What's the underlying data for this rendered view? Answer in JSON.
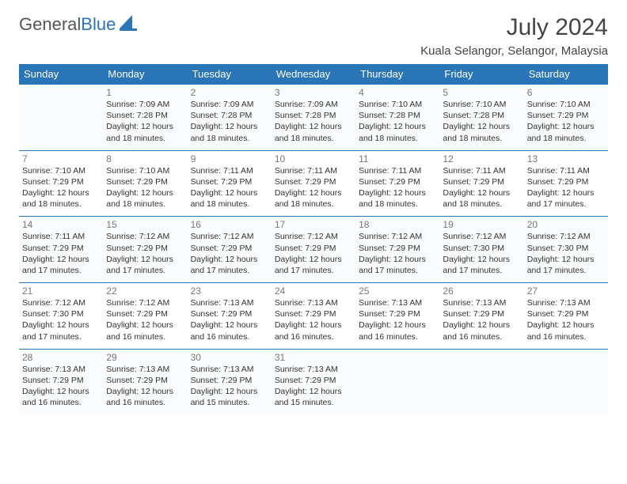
{
  "logo": {
    "word1": "General",
    "word2": "Blue"
  },
  "title": "July 2024",
  "location": "Kuala Selangor, Selangor, Malaysia",
  "colors": {
    "brand": "#2a74b8",
    "text": "#333333",
    "muted": "#777777",
    "bg_alt": "#fafbfc"
  },
  "day_headers": [
    "Sunday",
    "Monday",
    "Tuesday",
    "Wednesday",
    "Thursday",
    "Friday",
    "Saturday"
  ],
  "weeks": [
    [
      null,
      {
        "n": "1",
        "sr": "Sunrise: 7:09 AM",
        "ss": "Sunset: 7:28 PM",
        "d1": "Daylight: 12 hours",
        "d2": "and 18 minutes."
      },
      {
        "n": "2",
        "sr": "Sunrise: 7:09 AM",
        "ss": "Sunset: 7:28 PM",
        "d1": "Daylight: 12 hours",
        "d2": "and 18 minutes."
      },
      {
        "n": "3",
        "sr": "Sunrise: 7:09 AM",
        "ss": "Sunset: 7:28 PM",
        "d1": "Daylight: 12 hours",
        "d2": "and 18 minutes."
      },
      {
        "n": "4",
        "sr": "Sunrise: 7:10 AM",
        "ss": "Sunset: 7:28 PM",
        "d1": "Daylight: 12 hours",
        "d2": "and 18 minutes."
      },
      {
        "n": "5",
        "sr": "Sunrise: 7:10 AM",
        "ss": "Sunset: 7:28 PM",
        "d1": "Daylight: 12 hours",
        "d2": "and 18 minutes."
      },
      {
        "n": "6",
        "sr": "Sunrise: 7:10 AM",
        "ss": "Sunset: 7:29 PM",
        "d1": "Daylight: 12 hours",
        "d2": "and 18 minutes."
      }
    ],
    [
      {
        "n": "7",
        "sr": "Sunrise: 7:10 AM",
        "ss": "Sunset: 7:29 PM",
        "d1": "Daylight: 12 hours",
        "d2": "and 18 minutes."
      },
      {
        "n": "8",
        "sr": "Sunrise: 7:10 AM",
        "ss": "Sunset: 7:29 PM",
        "d1": "Daylight: 12 hours",
        "d2": "and 18 minutes."
      },
      {
        "n": "9",
        "sr": "Sunrise: 7:11 AM",
        "ss": "Sunset: 7:29 PM",
        "d1": "Daylight: 12 hours",
        "d2": "and 18 minutes."
      },
      {
        "n": "10",
        "sr": "Sunrise: 7:11 AM",
        "ss": "Sunset: 7:29 PM",
        "d1": "Daylight: 12 hours",
        "d2": "and 18 minutes."
      },
      {
        "n": "11",
        "sr": "Sunrise: 7:11 AM",
        "ss": "Sunset: 7:29 PM",
        "d1": "Daylight: 12 hours",
        "d2": "and 18 minutes."
      },
      {
        "n": "12",
        "sr": "Sunrise: 7:11 AM",
        "ss": "Sunset: 7:29 PM",
        "d1": "Daylight: 12 hours",
        "d2": "and 18 minutes."
      },
      {
        "n": "13",
        "sr": "Sunrise: 7:11 AM",
        "ss": "Sunset: 7:29 PM",
        "d1": "Daylight: 12 hours",
        "d2": "and 17 minutes."
      }
    ],
    [
      {
        "n": "14",
        "sr": "Sunrise: 7:11 AM",
        "ss": "Sunset: 7:29 PM",
        "d1": "Daylight: 12 hours",
        "d2": "and 17 minutes."
      },
      {
        "n": "15",
        "sr": "Sunrise: 7:12 AM",
        "ss": "Sunset: 7:29 PM",
        "d1": "Daylight: 12 hours",
        "d2": "and 17 minutes."
      },
      {
        "n": "16",
        "sr": "Sunrise: 7:12 AM",
        "ss": "Sunset: 7:29 PM",
        "d1": "Daylight: 12 hours",
        "d2": "and 17 minutes."
      },
      {
        "n": "17",
        "sr": "Sunrise: 7:12 AM",
        "ss": "Sunset: 7:29 PM",
        "d1": "Daylight: 12 hours",
        "d2": "and 17 minutes."
      },
      {
        "n": "18",
        "sr": "Sunrise: 7:12 AM",
        "ss": "Sunset: 7:29 PM",
        "d1": "Daylight: 12 hours",
        "d2": "and 17 minutes."
      },
      {
        "n": "19",
        "sr": "Sunrise: 7:12 AM",
        "ss": "Sunset: 7:30 PM",
        "d1": "Daylight: 12 hours",
        "d2": "and 17 minutes."
      },
      {
        "n": "20",
        "sr": "Sunrise: 7:12 AM",
        "ss": "Sunset: 7:30 PM",
        "d1": "Daylight: 12 hours",
        "d2": "and 17 minutes."
      }
    ],
    [
      {
        "n": "21",
        "sr": "Sunrise: 7:12 AM",
        "ss": "Sunset: 7:30 PM",
        "d1": "Daylight: 12 hours",
        "d2": "and 17 minutes."
      },
      {
        "n": "22",
        "sr": "Sunrise: 7:12 AM",
        "ss": "Sunset: 7:29 PM",
        "d1": "Daylight: 12 hours",
        "d2": "and 16 minutes."
      },
      {
        "n": "23",
        "sr": "Sunrise: 7:13 AM",
        "ss": "Sunset: 7:29 PM",
        "d1": "Daylight: 12 hours",
        "d2": "and 16 minutes."
      },
      {
        "n": "24",
        "sr": "Sunrise: 7:13 AM",
        "ss": "Sunset: 7:29 PM",
        "d1": "Daylight: 12 hours",
        "d2": "and 16 minutes."
      },
      {
        "n": "25",
        "sr": "Sunrise: 7:13 AM",
        "ss": "Sunset: 7:29 PM",
        "d1": "Daylight: 12 hours",
        "d2": "and 16 minutes."
      },
      {
        "n": "26",
        "sr": "Sunrise: 7:13 AM",
        "ss": "Sunset: 7:29 PM",
        "d1": "Daylight: 12 hours",
        "d2": "and 16 minutes."
      },
      {
        "n": "27",
        "sr": "Sunrise: 7:13 AM",
        "ss": "Sunset: 7:29 PM",
        "d1": "Daylight: 12 hours",
        "d2": "and 16 minutes."
      }
    ],
    [
      {
        "n": "28",
        "sr": "Sunrise: 7:13 AM",
        "ss": "Sunset: 7:29 PM",
        "d1": "Daylight: 12 hours",
        "d2": "and 16 minutes."
      },
      {
        "n": "29",
        "sr": "Sunrise: 7:13 AM",
        "ss": "Sunset: 7:29 PM",
        "d1": "Daylight: 12 hours",
        "d2": "and 16 minutes."
      },
      {
        "n": "30",
        "sr": "Sunrise: 7:13 AM",
        "ss": "Sunset: 7:29 PM",
        "d1": "Daylight: 12 hours",
        "d2": "and 15 minutes."
      },
      {
        "n": "31",
        "sr": "Sunrise: 7:13 AM",
        "ss": "Sunset: 7:29 PM",
        "d1": "Daylight: 12 hours",
        "d2": "and 15 minutes."
      },
      null,
      null,
      null
    ]
  ]
}
